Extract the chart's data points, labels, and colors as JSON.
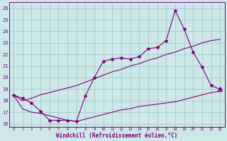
{
  "xlabel": "Windchill (Refroidissement éolien,°C)",
  "bg_color": "#cce8e8",
  "grid_color": "#aacece",
  "line_color": "#800080",
  "x_ticks": [
    0,
    1,
    2,
    3,
    4,
    5,
    6,
    7,
    8,
    9,
    10,
    11,
    12,
    13,
    14,
    15,
    16,
    17,
    18,
    19,
    20,
    21,
    22,
    23
  ],
  "y_ticks": [
    16,
    17,
    18,
    19,
    20,
    21,
    22,
    23,
    24,
    25,
    26
  ],
  "xlim": [
    -0.5,
    23.5
  ],
  "ylim": [
    15.7,
    26.5
  ],
  "main_line": [
    18.5,
    18.2,
    17.8,
    17.1,
    16.3,
    16.3,
    16.3,
    16.2,
    18.4,
    20.0,
    21.4,
    21.6,
    21.7,
    21.6,
    21.8,
    22.5,
    22.6,
    23.2,
    25.8,
    24.2,
    22.2,
    20.9,
    19.3,
    19.0
  ],
  "upper_line": [
    18.5,
    18.0,
    18.2,
    18.5,
    18.7,
    18.9,
    19.1,
    19.3,
    19.6,
    19.9,
    20.2,
    20.5,
    20.7,
    21.0,
    21.2,
    21.5,
    21.7,
    22.0,
    22.2,
    22.5,
    22.7,
    23.0,
    23.2,
    23.3
  ],
  "lower_line": [
    18.5,
    17.3,
    17.0,
    16.9,
    16.7,
    16.5,
    16.3,
    16.2,
    16.4,
    16.6,
    16.8,
    17.0,
    17.2,
    17.3,
    17.5,
    17.6,
    17.7,
    17.8,
    17.9,
    18.1,
    18.3,
    18.5,
    18.7,
    18.8
  ]
}
